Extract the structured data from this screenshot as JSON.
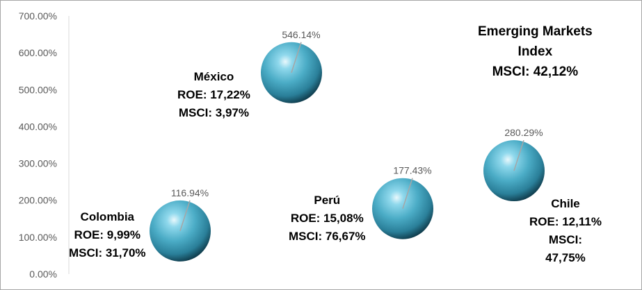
{
  "chart_data": {
    "type": "bubble",
    "y_axis": {
      "min": 0,
      "max": 7,
      "step": 1,
      "tick_labels": [
        "0.00%",
        "100.00%",
        "200.00%",
        "300.00%",
        "400.00%",
        "500.00%",
        "600.00%",
        "700.00%"
      ]
    },
    "title_lines": [
      "Emerging Markets",
      "Index",
      "MSCI: 42,12%"
    ],
    "points": [
      {
        "name": "Colombia",
        "x": 1,
        "y": 1.1694,
        "value_label": "116.94%",
        "lines": [
          "Colombia",
          "ROE: 9,99%",
          "MSCI: 31,70%"
        ]
      },
      {
        "name": "México",
        "x": 2,
        "y": 5.4614,
        "value_label": "546.14%",
        "lines": [
          "México",
          "ROE: 17,22%",
          "MSCI: 3,97%"
        ]
      },
      {
        "name": "Perú",
        "x": 3,
        "y": 1.7743,
        "value_label": "177.43%",
        "lines": [
          "Perú",
          "ROE: 15,08%",
          "MSCI: 76,67%"
        ]
      },
      {
        "name": "Chile",
        "x": 4,
        "y": 2.8029,
        "value_label": "280.29%",
        "lines": [
          "Chile",
          "ROE: 12,11%",
          "MSCI:",
          "47,75%"
        ]
      }
    ],
    "bubble_color": "#4bacc6",
    "grid": false,
    "legend": "none"
  }
}
